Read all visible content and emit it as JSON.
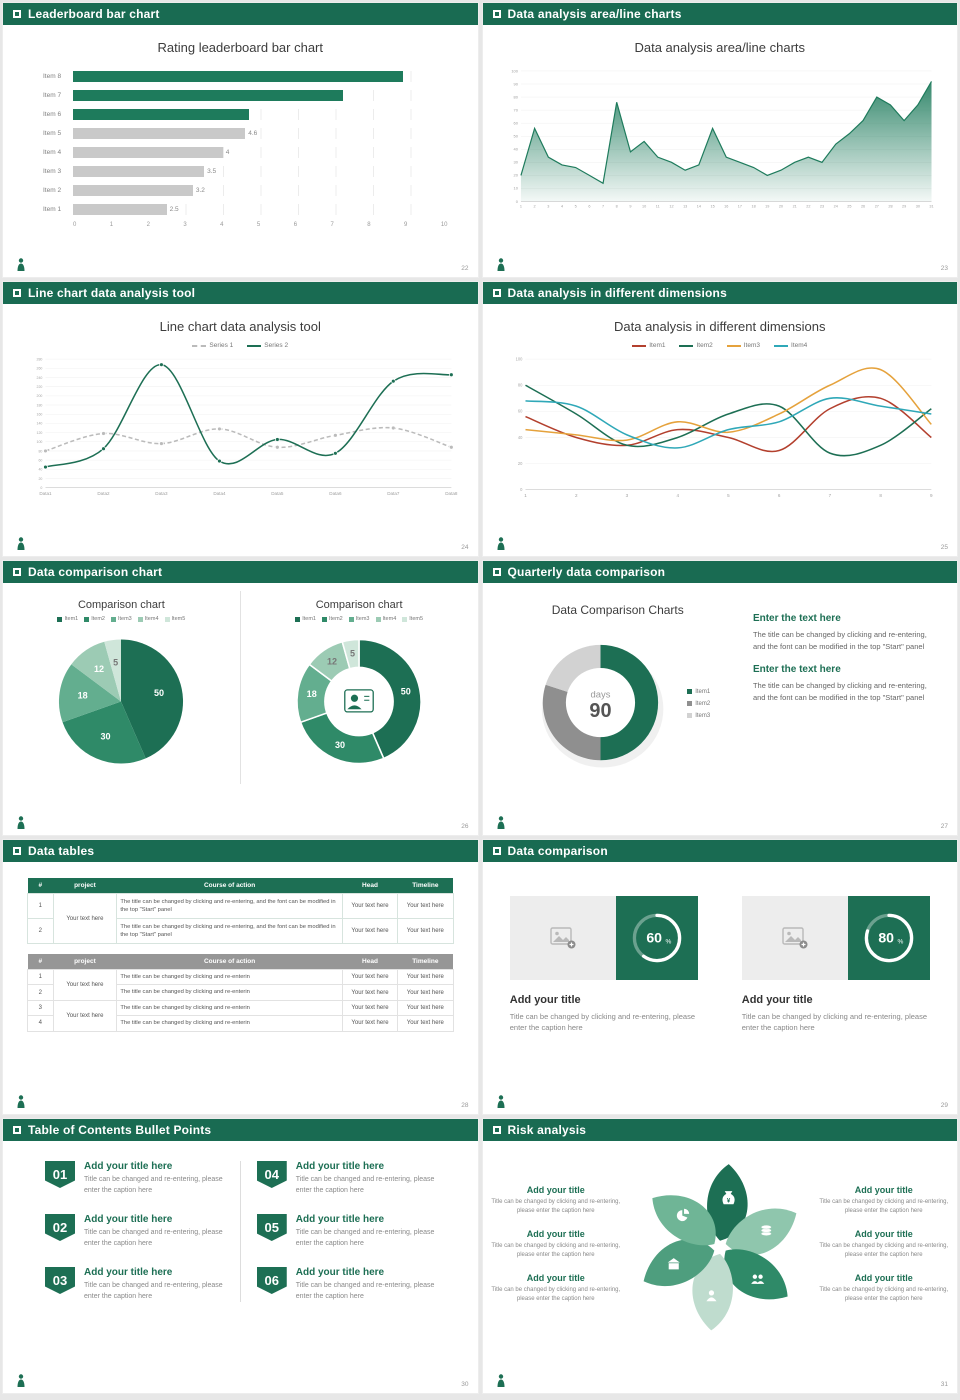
{
  "colors": {
    "header_bg": "#196B52",
    "primary_green": "#1D6F54",
    "accent_green": "#1E7B5C"
  },
  "slides": [
    {
      "header": "Leaderboard bar chart",
      "page_num": "22",
      "title": "Rating leaderboard bar chart",
      "chart_data": {
        "type": "bar",
        "orientation": "horizontal",
        "title": "Rating leaderboard bar chart",
        "categories": [
          "Item 8",
          "Item 7",
          "Item 6",
          "Item 5",
          "Item 4",
          "Item 3",
          "Item 2",
          "Item 1"
        ],
        "values": [
          8.8,
          7.2,
          4.7,
          4.6,
          4,
          3.5,
          3.2,
          2.5
        ],
        "value_labels": [
          "",
          "",
          "",
          "4.6",
          "4",
          "3.5",
          "3.2",
          "2.5"
        ],
        "bar_colors": [
          "#1E7B5C",
          "#1E7B5C",
          "#1E7B5C",
          "#C9C9C9",
          "#C9C9C9",
          "#C9C9C9",
          "#C9C9C9",
          "#C9C9C9"
        ],
        "xlim": [
          0,
          10
        ],
        "xticks": [
          "0",
          "1",
          "2",
          "3",
          "4",
          "5",
          "6",
          "7",
          "8",
          "9",
          "10"
        ]
      }
    },
    {
      "header": "Data analysis area/line charts",
      "page_num": "23",
      "title": "Data analysis area/line charts",
      "chart_data": {
        "type": "area",
        "title": "Data analysis area/line charts",
        "x_ticks": [
          "1",
          "2",
          "3",
          "4",
          "5",
          "6",
          "7",
          "8",
          "9",
          "10",
          "11",
          "12",
          "13",
          "14",
          "15",
          "16",
          "17",
          "18",
          "19",
          "20",
          "21",
          "22",
          "23",
          "24",
          "25",
          "26",
          "27",
          "28",
          "29",
          "30",
          "31"
        ],
        "values": [
          20,
          56,
          34,
          28,
          26,
          20,
          14,
          76,
          38,
          46,
          34,
          30,
          24,
          28,
          56,
          34,
          30,
          26,
          20,
          24,
          30,
          34,
          30,
          44,
          52,
          62,
          80,
          74,
          62,
          74,
          92
        ],
        "ylim": [
          0,
          100
        ],
        "yticks": [
          "0",
          "10",
          "20",
          "30",
          "40",
          "50",
          "60",
          "70",
          "80",
          "90",
          "100"
        ],
        "color": "#1E7B5C"
      }
    },
    {
      "header": "Line chart data analysis tool",
      "page_num": "24",
      "title": "Line chart data analysis tool",
      "chart_data": {
        "type": "line",
        "title": "Line chart data analysis tool",
        "categories": [
          "Data1",
          "Data2",
          "Data3",
          "Data4",
          "Data5",
          "Data6",
          "Data7",
          "Data8"
        ],
        "ylim": [
          0,
          280
        ],
        "yticks": [
          "0",
          "20",
          "40",
          "60",
          "80",
          "100",
          "120",
          "140",
          "160",
          "180",
          "200",
          "220",
          "240",
          "260",
          "280"
        ],
        "series": [
          {
            "name": "Series 1",
            "color": "#BBBBBB",
            "dashed": true,
            "values": [
              80,
              118,
              96,
              128,
              88,
              114,
              130,
              88
            ]
          },
          {
            "name": "Series 2",
            "color": "#1D6F54",
            "dashed": false,
            "values": [
              45,
              85,
              268,
              58,
              105,
              75,
              232,
              246
            ]
          }
        ]
      }
    },
    {
      "header": "Data analysis in different dimensions",
      "page_num": "25",
      "title": "Data analysis in different dimensions",
      "chart_data": {
        "type": "line",
        "smooth": true,
        "title": "Data analysis in different dimensions",
        "categories": [
          "1",
          "2",
          "3",
          "4",
          "5",
          "6",
          "7",
          "8",
          "9"
        ],
        "ylim": [
          0,
          100
        ],
        "yticks": [
          "0",
          "20",
          "40",
          "60",
          "80",
          "100"
        ],
        "series": [
          {
            "name": "Item1",
            "color": "#B3402E",
            "values": [
              56,
              40,
              34,
              46,
              40,
              30,
              62,
              70,
              40
            ]
          },
          {
            "name": "Item2",
            "color": "#1D6F54",
            "values": [
              80,
              58,
              34,
              40,
              58,
              64,
              28,
              34,
              62
            ]
          },
          {
            "name": "Item3",
            "color": "#E5A23C",
            "values": [
              46,
              42,
              38,
              52,
              44,
              58,
              80,
              92,
              50
            ]
          },
          {
            "name": "Item4",
            "color": "#2FA8B8",
            "values": [
              68,
              64,
              42,
              32,
              46,
              52,
              70,
              64,
              58
            ]
          }
        ]
      }
    },
    {
      "header": "Data comparison chart",
      "page_num": "26",
      "chart_data": [
        {
          "type": "pie",
          "title": "Comparison chart",
          "legend": [
            "Item1",
            "Item2",
            "Item3",
            "Item4",
            "Item5"
          ],
          "values": [
            50,
            30,
            18,
            12,
            5
          ],
          "labels": [
            "50",
            "30",
            "18",
            "12",
            "5"
          ],
          "colors": [
            "#1D6F54",
            "#2F8A68",
            "#63AE8F",
            "#9CCBB4",
            "#CFE6DA"
          ]
        },
        {
          "type": "donut",
          "title": "Comparison chart",
          "legend": [
            "Item1",
            "Item2",
            "Item3",
            "Item4",
            "Item5"
          ],
          "values": [
            50,
            30,
            18,
            12,
            5
          ],
          "labels": [
            "50",
            "30",
            "18",
            "12",
            "5"
          ],
          "colors": [
            "#1D6F54",
            "#2F8A68",
            "#63AE8F",
            "#9CCBB4",
            "#CFE6DA"
          ],
          "center_icon": "presenter-icon"
        }
      ]
    },
    {
      "header": "Quarterly data comparison",
      "page_num": "27",
      "title": "Data Comparison Charts",
      "chart_data": {
        "type": "donut",
        "values": [
          50,
          30,
          20
        ],
        "legend": [
          "Item1",
          "Item2",
          "Item3"
        ],
        "colors": [
          "#1D6F54",
          "#8F8F8F",
          "#D2D2D2"
        ],
        "center_top": "days",
        "center_bottom": "90"
      },
      "text_blocks": [
        {
          "heading": "Enter the text here",
          "body": "The title can be changed by clicking and re-entering, and the font can be modified in the top \"Start\" panel"
        },
        {
          "heading": "Enter the text here",
          "body": "The title can be changed by clicking and re-entering, and the font can be modified in the top \"Start\" panel"
        }
      ]
    },
    {
      "header": "Data tables",
      "page_num": "28",
      "table1": {
        "columns": [
          "#",
          "project",
          "Course of action",
          "Head",
          "Timeline"
        ],
        "project": "Your text here",
        "rows": [
          {
            "num": "1",
            "action": "The title can be changed by clicking and re-entering, and the font can be modified in the top \"Start\" panel",
            "head": "Your text here",
            "timeline": "Your text here"
          },
          {
            "num": "2",
            "action": "The title can be changed by clicking and re-entering, and the font can be modified in the top \"Start\" panel",
            "head": "Your text here",
            "timeline": "Your text here"
          }
        ]
      },
      "table2": {
        "columns": [
          "#",
          "project",
          "Course of action",
          "Head",
          "Timeline"
        ],
        "project_groups": [
          "Your text here",
          "Your text here"
        ],
        "rows": [
          {
            "num": "1",
            "action": "The title can be changed by clicking and re-enterin",
            "head": "Your text here",
            "timeline": "Your text here"
          },
          {
            "num": "2",
            "action": "The title can be changed by clicking and re-enterin",
            "head": "Your text here",
            "timeline": "Your text here"
          },
          {
            "num": "3",
            "action": "The title can be changed by clicking and re-enterin",
            "head": "Your text here",
            "timeline": "Your text here"
          },
          {
            "num": "4",
            "action": "The title can be changed by clicking and re-enterin",
            "head": "Your text here",
            "timeline": "Your text here"
          }
        ]
      }
    },
    {
      "header": "Data comparison",
      "page_num": "29",
      "cards": [
        {
          "percent": 60,
          "unit": "%",
          "title": "Add your title",
          "caption": "Title can be changed by clicking and re-entering, please enter the caption here"
        },
        {
          "percent": 80,
          "unit": "%",
          "title": "Add your title",
          "caption": "Title can be changed by clicking and re-entering, please enter the caption here"
        }
      ]
    },
    {
      "header": "Table of Contents Bullet Points",
      "page_num": "30",
      "items": [
        {
          "num": "01",
          "title": "Add your title here",
          "caption": "Title can be changed and re-entering, please enter the caption here"
        },
        {
          "num": "02",
          "title": "Add your title here",
          "caption": "Title can be changed and re-entering, please enter the caption here"
        },
        {
          "num": "03",
          "title": "Add your title here",
          "caption": "Title can be changed and re-entering, please enter the caption here"
        },
        {
          "num": "04",
          "title": "Add your title here",
          "caption": "Title can be changed and re-entering, please enter the caption here"
        },
        {
          "num": "05",
          "title": "Add your title here",
          "caption": "Title can be changed and re-entering, please enter the caption here"
        },
        {
          "num": "06",
          "title": "Add your title here",
          "caption": "Title can be changed and re-entering, please enter the caption here"
        }
      ]
    },
    {
      "header": "Risk analysis",
      "page_num": "31",
      "left_items": [
        {
          "title": "Add your title",
          "caption": "Title can be changed by clicking and re-entering, please enter the caption here"
        },
        {
          "title": "Add your title",
          "caption": "Title can be changed by clicking and re-entering, please enter the caption here"
        },
        {
          "title": "Add your title",
          "caption": "Title can be changed by clicking and re-entering, please enter the caption here"
        }
      ],
      "right_items": [
        {
          "title": "Add your title",
          "caption": "Title can be changed by clicking and re-entering, please enter the caption here"
        },
        {
          "title": "Add your title",
          "caption": "Title can be changed by clicking and re-entering, please enter the caption here"
        },
        {
          "title": "Add your title",
          "caption": "Title can be changed by clicking and re-entering, please enter the caption here"
        }
      ],
      "wheel_icons": [
        "money-bag-icon",
        "coins-icon",
        "group-icon",
        "person-icon",
        "bank-icon",
        "pie-chart-icon"
      ],
      "wheel_colors": [
        "#1D6F54",
        "#8FC6AD",
        "#2F8A68",
        "#BFDCCE",
        "#4E9E7E",
        "#6FB596"
      ]
    }
  ]
}
